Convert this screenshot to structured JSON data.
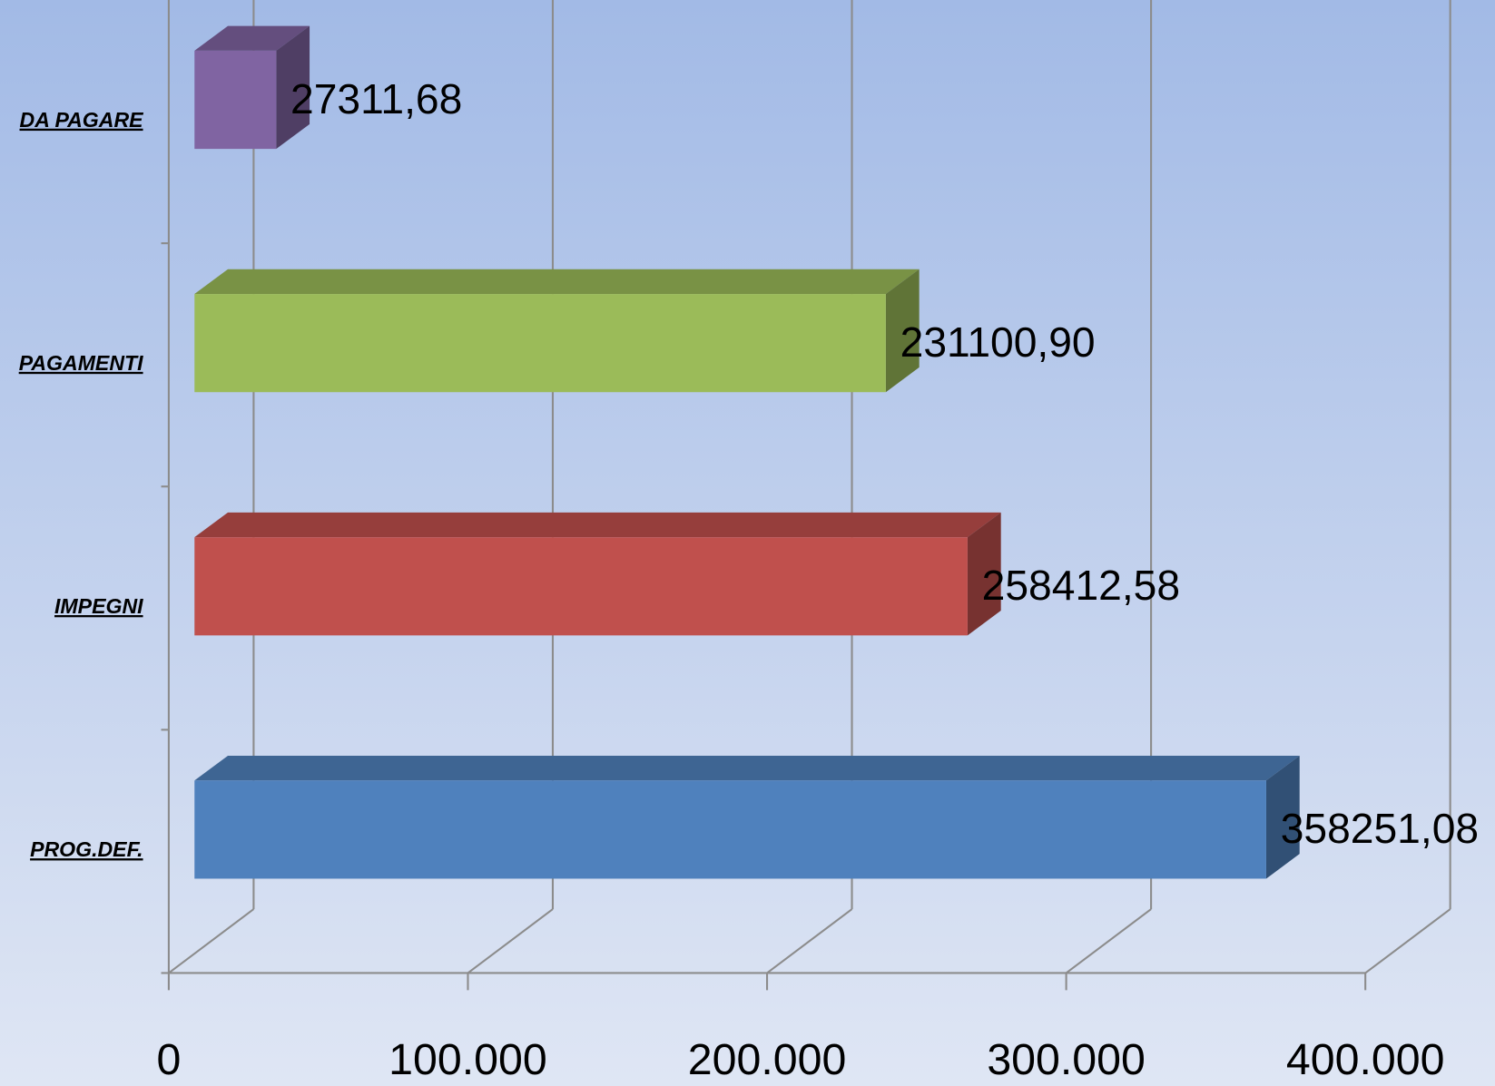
{
  "chart_data": {
    "type": "bar",
    "orientation": "horizontal",
    "categories": [
      "PROG.DEF.",
      "IMPEGNI",
      "PAGAMENTI",
      "DA PAGARE"
    ],
    "values": [
      358251.08,
      258412.58,
      231100.9,
      27311.68
    ],
    "value_labels": [
      "358251,08",
      "258412,58",
      "231100,90",
      "27311,68"
    ],
    "colors": [
      "#4f81bd",
      "#c0504d",
      "#9bbb59",
      "#8064a2"
    ],
    "xlim": [
      0,
      400000
    ],
    "xticks": [
      0,
      {
        "value": 100000,
        "label": "100.000"
      },
      {
        "value": 200000,
        "label": "200.000"
      },
      {
        "value": 300000,
        "label": "300.000"
      },
      {
        "value": 400000,
        "label": "400.000"
      }
    ],
    "grid": true,
    "three_d": true
  }
}
